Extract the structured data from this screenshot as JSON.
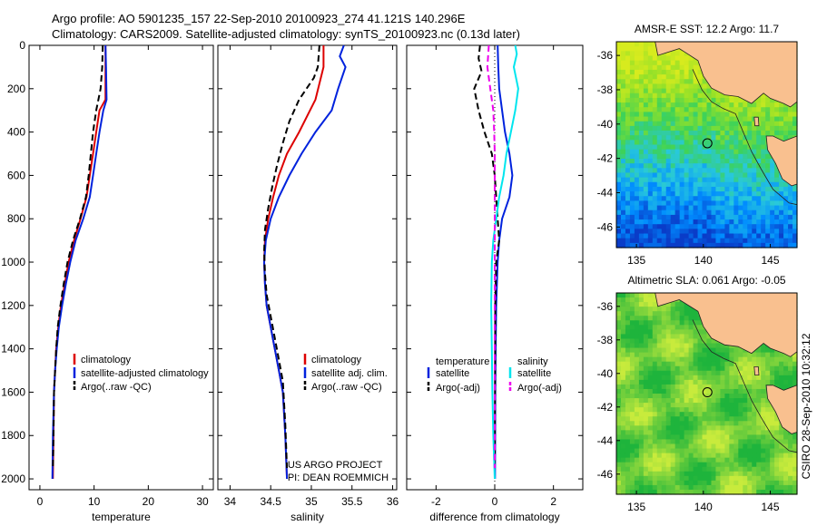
{
  "header": {
    "line1": "Argo profile: AO 5901235_157 22-Sep-2010 20100923_274 41.121S 140.296E",
    "line2": "Climatology: CARS2009. Satellite-adjusted climatology: synTS_20100923.nc (0.13d later)"
  },
  "footer_credit": "CSIRO 28-Sep-2010 10:32:12",
  "colors": {
    "climatology": "#dd0000",
    "satellite": "#0022dd",
    "argo": "#000000",
    "satellite_salinity": "#00e5ee",
    "argo_adj_salinity": "#ee00ee",
    "land": "#f9c08f"
  },
  "chart_data": [
    {
      "type": "line",
      "id": "temperature",
      "xlabel": "temperature",
      "ylabel": "",
      "xlim": [
        -2,
        32
      ],
      "ylim": [
        2050,
        0
      ],
      "xticks": [
        0,
        10,
        20,
        30
      ],
      "yticks": [
        0,
        200,
        400,
        600,
        800,
        1000,
        1200,
        1400,
        1600,
        1800,
        2000
      ],
      "legend": {
        "placement": "lower-right",
        "entries": [
          "climatology",
          "satellite-adjusted climatology",
          "Argo(..raw -QC)"
        ]
      },
      "series": [
        {
          "name": "climatology",
          "color": "#dd0000",
          "points": [
            [
              12.1,
              0
            ],
            [
              12.1,
              100
            ],
            [
              12.1,
              250
            ],
            [
              11,
              300
            ],
            [
              10.4,
              400
            ],
            [
              9.8,
              500
            ],
            [
              9.2,
              600
            ],
            [
              8.6,
              700
            ],
            [
              7.5,
              800
            ],
            [
              6.3,
              900
            ],
            [
              5.3,
              1000
            ],
            [
              4.6,
              1100
            ],
            [
              3.9,
              1200
            ],
            [
              3.4,
              1300
            ],
            [
              3.0,
              1400
            ],
            [
              2.8,
              1500
            ],
            [
              2.6,
              1600
            ],
            [
              2.5,
              1800
            ],
            [
              2.4,
              2000
            ]
          ]
        },
        {
          "name": "satellite-adjusted climatology",
          "color": "#0022dd",
          "points": [
            [
              12.1,
              0
            ],
            [
              12.2,
              100
            ],
            [
              12.3,
              250
            ],
            [
              11.7,
              300
            ],
            [
              11.0,
              400
            ],
            [
              10.4,
              500
            ],
            [
              9.8,
              600
            ],
            [
              9.2,
              700
            ],
            [
              8.0,
              800
            ],
            [
              6.6,
              900
            ],
            [
              5.6,
              1000
            ],
            [
              4.8,
              1100
            ],
            [
              4.1,
              1200
            ],
            [
              3.5,
              1300
            ],
            [
              3.1,
              1400
            ],
            [
              2.8,
              1500
            ],
            [
              2.6,
              1600
            ],
            [
              2.4,
              1800
            ],
            [
              2.3,
              2000
            ]
          ]
        },
        {
          "name": "Argo(..raw -QC)",
          "color": "#000000",
          "dashed": true,
          "points": [
            [
              11.6,
              0
            ],
            [
              11.5,
              100
            ],
            [
              11.2,
              200
            ],
            [
              10.4,
              300
            ],
            [
              9.8,
              400
            ],
            [
              9.4,
              500
            ],
            [
              9.0,
              600
            ],
            [
              8.5,
              700
            ],
            [
              7.4,
              800
            ],
            [
              6.1,
              900
            ],
            [
              5.1,
              1000
            ],
            [
              4.4,
              1100
            ],
            [
              3.8,
              1200
            ],
            [
              3.3,
              1300
            ],
            [
              3.0,
              1400
            ],
            [
              2.8,
              1500
            ],
            [
              2.6,
              1600
            ],
            [
              2.5,
              1800
            ],
            [
              2.4,
              1950
            ]
          ]
        }
      ],
      "annotations": []
    },
    {
      "type": "line",
      "id": "salinity",
      "xlabel": "salinity",
      "ylabel": "",
      "xlim": [
        33.85,
        36.05
      ],
      "ylim": [
        2050,
        0
      ],
      "xticks": [
        34,
        34.5,
        35,
        35.5,
        36
      ],
      "yticks": [
        0,
        200,
        400,
        600,
        800,
        1000,
        1200,
        1400,
        1600,
        1800,
        2000
      ],
      "legend": {
        "placement": "lower-right",
        "entries": [
          "climatology",
          "satellite adj. clim.",
          "Argo(..raw -QC)"
        ]
      },
      "series": [
        {
          "name": "climatology",
          "color": "#dd0000",
          "points": [
            [
              35.15,
              0
            ],
            [
              35.15,
              100
            ],
            [
              35.05,
              250
            ],
            [
              34.85,
              400
            ],
            [
              34.7,
              500
            ],
            [
              34.6,
              600
            ],
            [
              34.53,
              700
            ],
            [
              34.47,
              800
            ],
            [
              34.43,
              900
            ],
            [
              34.42,
              1000
            ],
            [
              34.43,
              1100
            ],
            [
              34.45,
              1200
            ],
            [
              34.5,
              1300
            ],
            [
              34.55,
              1400
            ],
            [
              34.6,
              1500
            ],
            [
              34.65,
              1600
            ],
            [
              34.68,
              1800
            ],
            [
              34.7,
              2000
            ]
          ]
        },
        {
          "name": "satellite adj. clim.",
          "color": "#0022dd",
          "points": [
            [
              35.4,
              0
            ],
            [
              35.35,
              50
            ],
            [
              35.42,
              100
            ],
            [
              35.33,
              200
            ],
            [
              35.25,
              300
            ],
            [
              35.05,
              400
            ],
            [
              34.88,
              500
            ],
            [
              34.73,
              600
            ],
            [
              34.6,
              700
            ],
            [
              34.5,
              800
            ],
            [
              34.44,
              900
            ],
            [
              34.42,
              1000
            ],
            [
              34.43,
              1100
            ],
            [
              34.45,
              1200
            ],
            [
              34.5,
              1300
            ],
            [
              34.55,
              1400
            ],
            [
              34.6,
              1500
            ],
            [
              34.65,
              1600
            ],
            [
              34.68,
              1800
            ],
            [
              34.7,
              2000
            ]
          ]
        },
        {
          "name": "Argo(..raw -QC)",
          "color": "#000000",
          "dashed": true,
          "points": [
            [
              35.1,
              0
            ],
            [
              35.08,
              100
            ],
            [
              35.03,
              150
            ],
            [
              34.85,
              250
            ],
            [
              34.73,
              350
            ],
            [
              34.65,
              450
            ],
            [
              34.58,
              550
            ],
            [
              34.52,
              650
            ],
            [
              34.47,
              750
            ],
            [
              34.43,
              850
            ],
            [
              34.42,
              950
            ],
            [
              34.43,
              1050
            ],
            [
              34.45,
              1150
            ],
            [
              34.5,
              1250
            ],
            [
              34.55,
              1350
            ],
            [
              34.6,
              1450
            ],
            [
              34.65,
              1550
            ],
            [
              34.68,
              1750
            ],
            [
              34.7,
              1950
            ]
          ]
        }
      ],
      "annotations": [
        "US ARGO PROJECT",
        "PI: DEAN ROEMMICH"
      ]
    },
    {
      "type": "line",
      "id": "difference",
      "xlabel": "difference from climatology",
      "ylabel": "",
      "xlim": [
        -3,
        3
      ],
      "ylim": [
        2050,
        0
      ],
      "xticks": [
        -2,
        0,
        2
      ],
      "yticks": [
        0,
        200,
        400,
        600,
        800,
        1000,
        1200,
        1400,
        1600,
        1800,
        2000
      ],
      "reference_line_x": 0,
      "legend": {
        "placement": "lower-center",
        "columns": [
          {
            "heading": "temperature",
            "entries": [
              "satellite",
              "Argo(-adj)"
            ]
          },
          {
            "heading": "salinity",
            "entries": [
              "satellite",
              "Argo(-adj)"
            ]
          }
        ]
      },
      "series": [
        {
          "name": "temperature satellite",
          "color": "#0022dd",
          "points": [
            [
              0.1,
              0
            ],
            [
              0.12,
              100
            ],
            [
              0.15,
              200
            ],
            [
              0.35,
              400
            ],
            [
              0.5,
              500
            ],
            [
              0.6,
              600
            ],
            [
              0.5,
              700
            ],
            [
              0.25,
              800
            ],
            [
              0.15,
              900
            ],
            [
              0.1,
              1000
            ],
            [
              0.05,
              1200
            ],
            [
              0.03,
              1400
            ],
            [
              0.02,
              1600
            ],
            [
              0.01,
              2000
            ]
          ]
        },
        {
          "name": "temperature Argo(-adj)",
          "color": "#000000",
          "dashed": true,
          "points": [
            [
              -0.5,
              0
            ],
            [
              -0.55,
              60
            ],
            [
              -0.45,
              120
            ],
            [
              -0.7,
              200
            ],
            [
              -0.55,
              300
            ],
            [
              -0.35,
              400
            ],
            [
              -0.1,
              500
            ],
            [
              0.0,
              600
            ],
            [
              0.1,
              800
            ],
            [
              0.15,
              900
            ],
            [
              0.05,
              1000
            ],
            [
              0.02,
              1200
            ],
            [
              0.01,
              1600
            ],
            [
              0.0,
              1950
            ]
          ]
        },
        {
          "name": "salinity satellite",
          "color": "#00e5ee",
          "points": [
            [
              0.7,
              0
            ],
            [
              0.75,
              40
            ],
            [
              0.65,
              100
            ],
            [
              0.8,
              200
            ],
            [
              0.7,
              300
            ],
            [
              0.55,
              400
            ],
            [
              0.4,
              500
            ],
            [
              0.3,
              600
            ],
            [
              0.15,
              700
            ],
            [
              0.05,
              800
            ],
            [
              -0.05,
              900
            ],
            [
              -0.1,
              1000
            ],
            [
              -0.12,
              1200
            ],
            [
              -0.1,
              1400
            ],
            [
              -0.08,
              1600
            ],
            [
              -0.05,
              1800
            ],
            [
              0.0,
              2000
            ]
          ]
        },
        {
          "name": "salinity Argo(-adj)",
          "color": "#ee00ee",
          "dashed": true,
          "points": [
            [
              -0.2,
              0
            ],
            [
              -0.25,
              100
            ],
            [
              -0.15,
              200
            ],
            [
              -0.05,
              300
            ],
            [
              -0.02,
              400
            ],
            [
              0.0,
              500
            ],
            [
              0.0,
              700
            ],
            [
              0.0,
              1000
            ],
            [
              0.0,
              1950
            ]
          ]
        }
      ],
      "annotations": []
    },
    {
      "type": "heatmap",
      "id": "sst-map",
      "title": "AMSR-E SST: 12.2 Argo: 11.7",
      "xlim": [
        133.5,
        147
      ],
      "ylim": [
        -47.2,
        -35.2
      ],
      "xticks": [
        135,
        140,
        145
      ],
      "yticks": [
        -36,
        -38,
        -40,
        -42,
        -44,
        -46
      ],
      "marker": {
        "lon": 140.3,
        "lat": -41.12
      },
      "fields": [
        "SST"
      ]
    },
    {
      "type": "heatmap",
      "id": "sla-map",
      "title": "Altimetric SLA: 0.061 Argo: -0.05",
      "xlim": [
        133.5,
        147
      ],
      "ylim": [
        -47.2,
        -35.2
      ],
      "xticks": [
        135,
        140,
        145
      ],
      "yticks": [
        -36,
        -38,
        -40,
        -42,
        -44,
        -46
      ],
      "marker": {
        "lon": 140.3,
        "lat": -41.12
      },
      "fields": [
        "SLA"
      ]
    }
  ]
}
